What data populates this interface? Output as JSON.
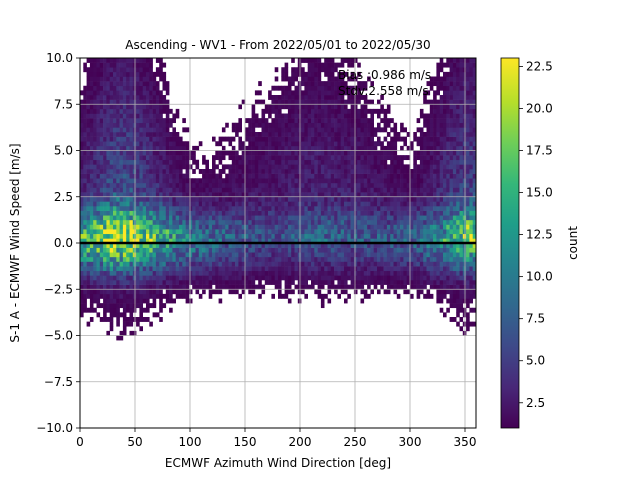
{
  "chart_data": {
    "type": "heatmap",
    "title": "Ascending - WV1 - From 2022/05/01 to 2022/05/30",
    "xlabel": "ECMWF Azimuth Wind Direction [deg]",
    "ylabel": "S-1 A - ECMWF Wind Speed [m/s]",
    "xlim": [
      0,
      360
    ],
    "ylim": [
      -10,
      10
    ],
    "xticks": [
      0,
      50,
      100,
      150,
      200,
      250,
      300,
      350
    ],
    "yticks": [
      -10.0,
      -7.5,
      -5.0,
      -2.5,
      0.0,
      2.5,
      5.0,
      7.5,
      10.0
    ],
    "grid": true,
    "bin_width_deg": 3,
    "bin_height_ms": 0.25,
    "reference_line_y": 0,
    "annotations": [
      "Bias :0.986 m/s",
      "Stdv:2.558 m/s"
    ],
    "colorbar": {
      "label": "count",
      "colormap": "viridis",
      "min": 1,
      "max": 23,
      "ticks": [
        2.5,
        5.0,
        7.5,
        10.0,
        12.5,
        15.0,
        17.5,
        20.0,
        22.5
      ]
    },
    "density_profile": {
      "description_of_bins": "count peaks near 0 m/s difference, strongest at 20-60 deg and 340-360 deg",
      "peak_count": 23,
      "core_count_at_0ms_by_direction": [
        {
          "dir": 0,
          "count": 12
        },
        {
          "dir": 15,
          "count": 14
        },
        {
          "dir": 30,
          "count": 18
        },
        {
          "dir": 45,
          "count": 17
        },
        {
          "dir": 60,
          "count": 14
        },
        {
          "dir": 90,
          "count": 9
        },
        {
          "dir": 120,
          "count": 7
        },
        {
          "dir": 150,
          "count": 5
        },
        {
          "dir": 180,
          "count": 4
        },
        {
          "dir": 210,
          "count": 5
        },
        {
          "dir": 240,
          "count": 5
        },
        {
          "dir": 270,
          "count": 5
        },
        {
          "dir": 300,
          "count": 6
        },
        {
          "dir": 330,
          "count": 9
        },
        {
          "dir": 350,
          "count": 14
        }
      ]
    }
  },
  "colors": {
    "viridis": [
      "#440154",
      "#482878",
      "#3e4989",
      "#31688e",
      "#26828e",
      "#1f9e89",
      "#35b779",
      "#6ece58",
      "#b5de2b",
      "#fde725"
    ],
    "reference_line": "#000000",
    "grid": "#b0b0b0"
  }
}
